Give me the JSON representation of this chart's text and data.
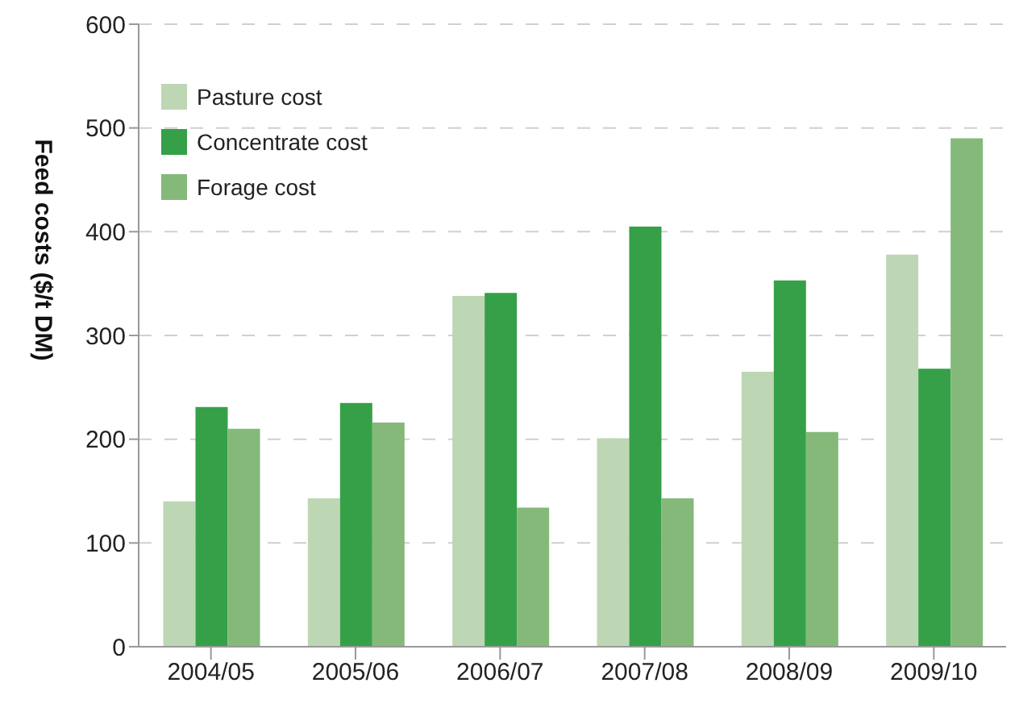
{
  "chart_data": {
    "type": "bar",
    "ylabel": "Feed costs ($/t DM)",
    "categories": [
      "2004/05",
      "2005/06",
      "2006/07",
      "2007/08",
      "2008/09",
      "2009/10"
    ],
    "series": [
      {
        "name": "Pasture cost",
        "color": "#bdd7b4",
        "values": [
          140,
          143,
          338,
          201,
          265,
          378
        ]
      },
      {
        "name": "Concentrate cost",
        "color": "#35a048",
        "values": [
          231,
          235,
          341,
          405,
          353,
          268
        ]
      },
      {
        "name": "Forage cost",
        "color": "#84b97a",
        "values": [
          210,
          216,
          134,
          143,
          207,
          490
        ]
      }
    ],
    "ylim": [
      0,
      600
    ],
    "yticks": [
      0,
      100,
      200,
      300,
      400,
      500,
      600
    ],
    "grid": "y",
    "legend": "top left"
  }
}
